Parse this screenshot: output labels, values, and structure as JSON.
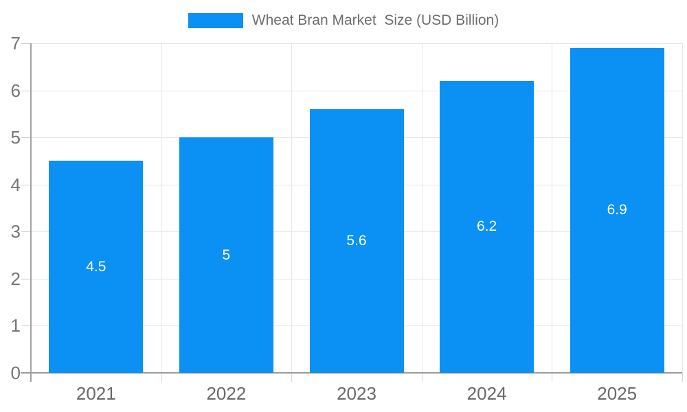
{
  "legend": {
    "position": "top",
    "swatch_color": "#0b90f3"
  },
  "chart_data": {
    "type": "bar",
    "title": "Wheat Bran Market  Size (USD Billion)",
    "categories": [
      "2021",
      "2022",
      "2023",
      "2024",
      "2025"
    ],
    "values": [
      4.5,
      5,
      5.6,
      6.2,
      6.9
    ],
    "value_labels": [
      "4.5",
      "5",
      "5.6",
      "6.2",
      "6.9"
    ],
    "xlabel": "",
    "ylabel": "",
    "ylim": [
      0,
      7
    ],
    "y_ticks": [
      0,
      1,
      2,
      3,
      4,
      5,
      6,
      7
    ],
    "grid": true,
    "legend_position": "top",
    "bar_color": "#0b90f3",
    "value_label_color": "#ffffff",
    "axis_text_color": "#757575",
    "grid_color": "#e6e6e6",
    "axis_line_color": "#9b9b9b"
  }
}
